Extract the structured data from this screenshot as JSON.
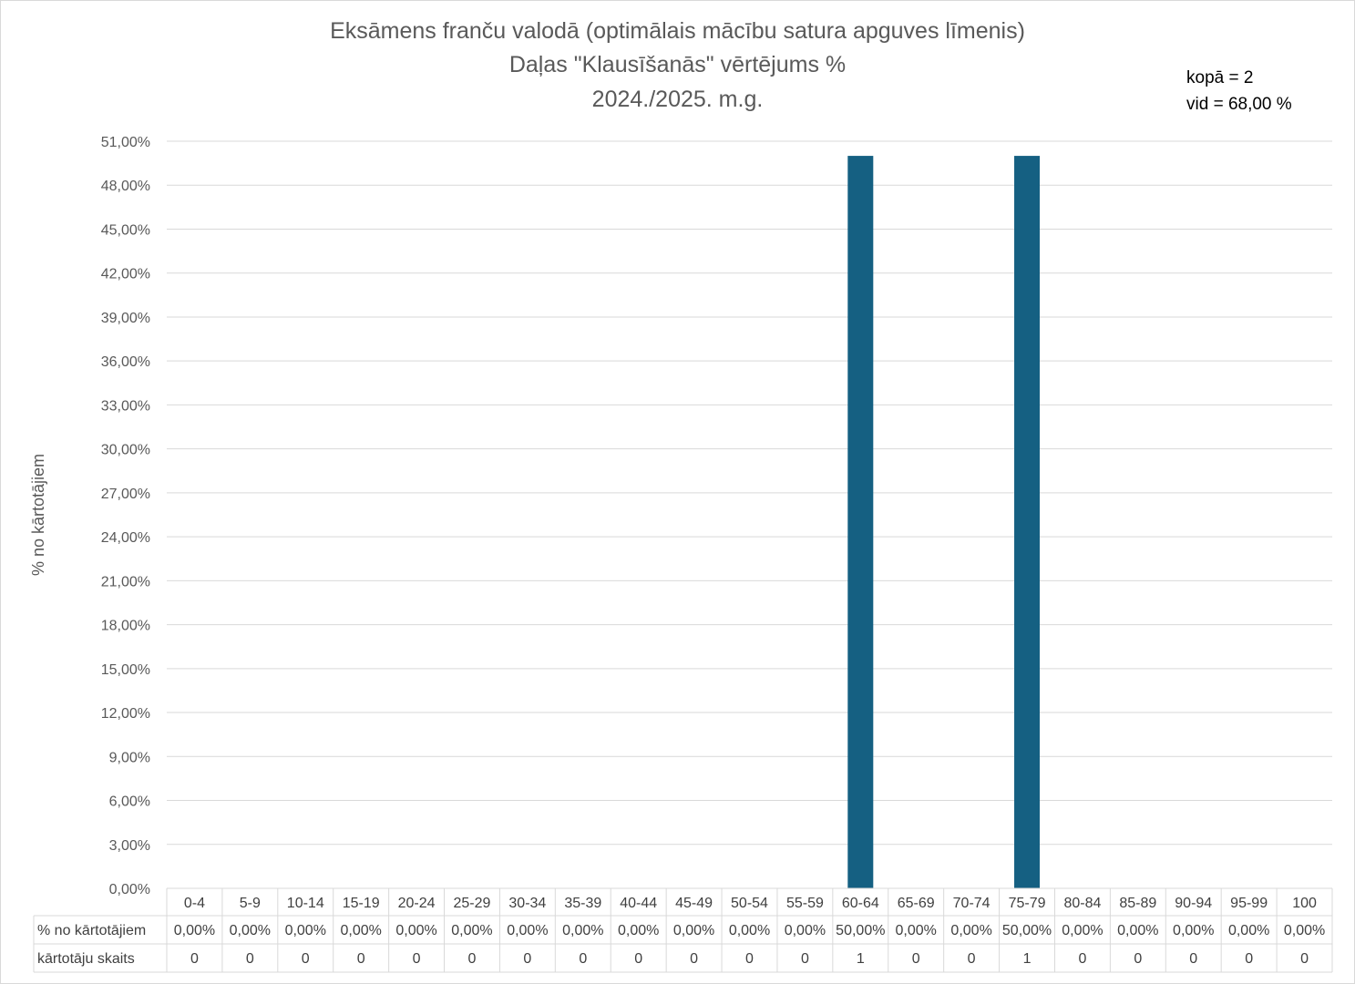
{
  "chart_data": {
    "type": "bar",
    "title": [
      "Eksāmens franču valodā (optimālais mācību satura apguves līmenis)",
      "Daļas \"Klausīšanās\" vērtējums %",
      "2024./2025. m.g."
    ],
    "annotations": [
      "kopā = 2",
      "vid = 68,00 %"
    ],
    "ylabel": "% no kārtotājiem",
    "xlabel": "",
    "ylim": [
      0,
      51
    ],
    "yticks": [
      "0,00%",
      "3,00%",
      "6,00%",
      "9,00%",
      "12,00%",
      "15,00%",
      "18,00%",
      "21,00%",
      "24,00%",
      "27,00%",
      "30,00%",
      "33,00%",
      "36,00%",
      "39,00%",
      "42,00%",
      "45,00%",
      "48,00%",
      "51,00%"
    ],
    "grid": true,
    "bar_color": "#156082",
    "categories": [
      "0-4",
      "5-9",
      "10-14",
      "15-19",
      "20-24",
      "25-29",
      "30-34",
      "35-39",
      "40-44",
      "45-49",
      "50-54",
      "55-59",
      "60-64",
      "65-69",
      "70-74",
      "75-79",
      "80-84",
      "85-89",
      "90-94",
      "95-99",
      "100"
    ],
    "values": [
      0,
      0,
      0,
      0,
      0,
      0,
      0,
      0,
      0,
      0,
      0,
      0,
      50,
      0,
      0,
      50,
      0,
      0,
      0,
      0,
      0
    ],
    "table": {
      "rows": [
        {
          "label": "% no kārtotājiem",
          "cells": [
            "0,00%",
            "0,00%",
            "0,00%",
            "0,00%",
            "0,00%",
            "0,00%",
            "0,00%",
            "0,00%",
            "0,00%",
            "0,00%",
            "0,00%",
            "0,00%",
            "50,00%",
            "0,00%",
            "0,00%",
            "50,00%",
            "0,00%",
            "0,00%",
            "0,00%",
            "0,00%",
            "0,00%"
          ]
        },
        {
          "label": "kārtotāju skaits",
          "cells": [
            "0",
            "0",
            "0",
            "0",
            "0",
            "0",
            "0",
            "0",
            "0",
            "0",
            "0",
            "0",
            "1",
            "0",
            "0",
            "1",
            "0",
            "0",
            "0",
            "0",
            "0"
          ]
        }
      ]
    }
  }
}
